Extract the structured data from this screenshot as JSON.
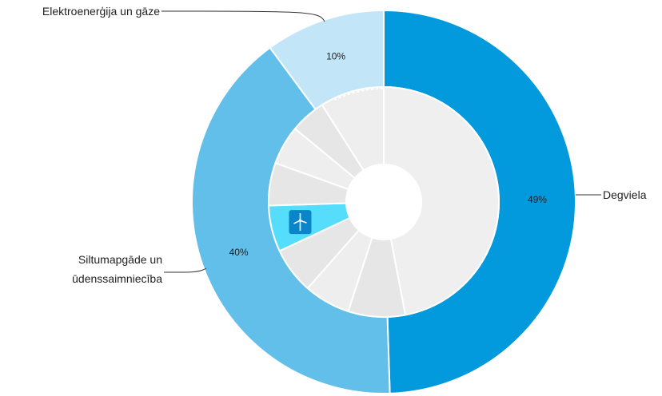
{
  "chart_data": {
    "type": "pie",
    "variant": "nested-donut",
    "title": "",
    "outer_ring": {
      "series": [
        {
          "name": "Degviela",
          "value": 49,
          "label": "49%",
          "color": "#0299dd"
        },
        {
          "name": "Siltumapgāde un ūdenssaimniecība",
          "name_lines": [
            "Siltumapgāde un",
            "ūdenssaimniecība"
          ],
          "value": 40,
          "label": "40%",
          "color": "#62bfea"
        },
        {
          "name": "Elektroenerģija un gāze",
          "value": 10,
          "label": "10%",
          "color": "#c2e5f8"
        }
      ]
    },
    "inner_ring": {
      "note_colors": {
        "default": "#e6e6e6",
        "large": "#efefef",
        "highlight": "#55ddfb"
      },
      "segments": [
        {
          "value": 47,
          "color": "#efefef"
        },
        {
          "value": 8,
          "color": "#e6e6e6"
        },
        {
          "value": 6.5,
          "color": "#eeeeee"
        },
        {
          "value": 6.5,
          "color": "#e6e6e6"
        },
        {
          "value": 6.5,
          "color": "#55ddfb",
          "icon": "wind-turbine-icon",
          "highlighted": true
        },
        {
          "value": 6,
          "color": "#e6e6e6"
        },
        {
          "value": 5.5,
          "color": "#eeeeee"
        },
        {
          "value": 5,
          "color": "#e6e6e6"
        },
        {
          "value": 9,
          "color": "#eeeeee"
        }
      ]
    },
    "legend": "none"
  }
}
